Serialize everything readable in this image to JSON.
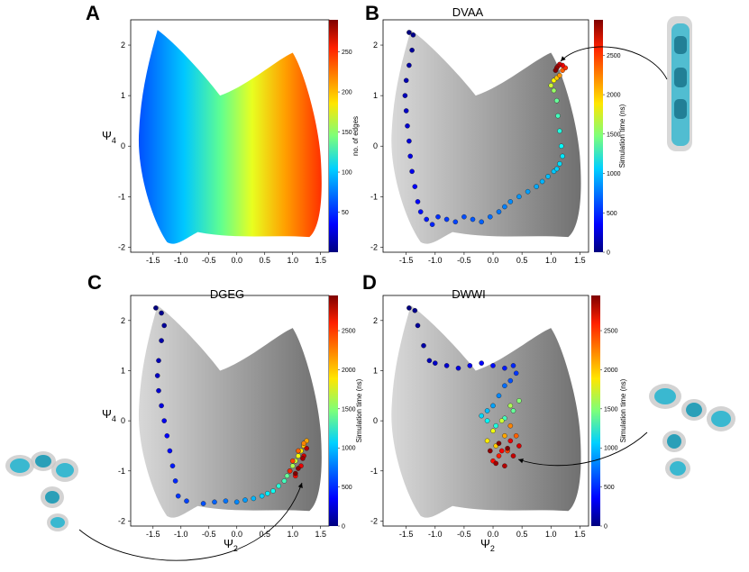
{
  "colors": {
    "jet_low": "#00007f",
    "jet_high": "#7f0000",
    "background_cloud": "#9a9a9a",
    "arrow": "#000000"
  },
  "chart_data": [
    {
      "panel": "A",
      "title": "",
      "type": "scatter",
      "xlabel": "",
      "ylabel": "Ψ",
      "ylabel_sub": "4",
      "xlim": [
        -1.9,
        1.65
      ],
      "ylim": [
        -2.1,
        2.5
      ],
      "xticks": [
        "-1.5",
        "-1.0",
        "-0.5",
        "0.0",
        "0.5",
        "1.0",
        "1.5"
      ],
      "yticks": [
        "-2",
        "-1",
        "0",
        "1",
        "2"
      ],
      "colorbar": {
        "label": "no. of edges",
        "range": [
          0,
          290
        ],
        "ticks": [
          "50",
          "100",
          "150",
          "200",
          "250"
        ],
        "colormap": "jet"
      },
      "series": [
        {
          "name": "conformational landscape colored by no. of edges",
          "color_mapping": "edges increase with Ψ2"
        }
      ]
    },
    {
      "panel": "B",
      "title": "DVAA",
      "type": "scatter",
      "xlabel": "",
      "ylabel": "",
      "xlim": [
        -1.9,
        1.65
      ],
      "ylim": [
        -2.1,
        2.5
      ],
      "xticks": [
        "-1.5",
        "-1.0",
        "-0.5",
        "0.0",
        "0.5",
        "1.0",
        "1.5"
      ],
      "yticks": [
        "-2",
        "-1",
        "0",
        "1",
        "2"
      ],
      "colorbar": {
        "label": "Simulation time (ns)",
        "range": [
          0,
          2950
        ],
        "ticks": [
          "0",
          "500",
          "1000",
          "1500",
          "2000",
          "2500"
        ],
        "colormap": "jet"
      },
      "trajectory": {
        "x": [
          -1.45,
          -1.38,
          -1.4,
          -1.45,
          -1.5,
          -1.52,
          -1.5,
          -1.48,
          -1.45,
          -1.43,
          -1.4,
          -1.35,
          -1.3,
          -1.25,
          -1.15,
          -1.05,
          -0.95,
          -0.8,
          -0.65,
          -0.5,
          -0.35,
          -0.2,
          -0.05,
          0.1,
          0.2,
          0.3,
          0.45,
          0.6,
          0.75,
          0.85,
          0.95,
          1.05,
          1.1,
          1.15,
          1.2,
          1.18,
          1.15,
          1.12,
          1.1,
          1.05,
          1.0,
          1.05,
          1.1,
          1.15,
          1.2,
          1.25,
          1.2,
          1.15,
          1.12,
          1.1,
          1.08
        ],
        "y": [
          2.25,
          2.2,
          1.9,
          1.6,
          1.3,
          1.0,
          0.7,
          0.4,
          0.1,
          -0.2,
          -0.5,
          -0.8,
          -1.1,
          -1.3,
          -1.45,
          -1.55,
          -1.4,
          -1.45,
          -1.5,
          -1.4,
          -1.45,
          -1.5,
          -1.4,
          -1.3,
          -1.2,
          -1.1,
          -1.0,
          -0.9,
          -0.8,
          -0.7,
          -0.6,
          -0.5,
          -0.45,
          -0.35,
          -0.2,
          0.0,
          0.3,
          0.6,
          0.9,
          1.1,
          1.2,
          1.3,
          1.35,
          1.4,
          1.5,
          1.55,
          1.6,
          1.62,
          1.58,
          1.55,
          1.5
        ],
        "time_ns": [
          0,
          40,
          80,
          110,
          140,
          170,
          200,
          230,
          260,
          290,
          320,
          350,
          380,
          410,
          440,
          470,
          500,
          530,
          560,
          590,
          620,
          650,
          680,
          710,
          740,
          770,
          800,
          830,
          860,
          890,
          920,
          950,
          980,
          1010,
          1040,
          1100,
          1200,
          1300,
          1400,
          1550,
          1700,
          1850,
          2000,
          2150,
          2300,
          2450,
          2600,
          2700,
          2800,
          2880,
          2950
        ]
      },
      "annotation": "structure snapshot: extended (DVAA)"
    },
    {
      "panel": "C",
      "title": "DGEG",
      "type": "scatter",
      "xlabel": "Ψ",
      "xlabel_sub": "2",
      "ylabel": "Ψ",
      "ylabel_sub": "4",
      "xlim": [
        -1.9,
        1.65
      ],
      "ylim": [
        -2.1,
        2.5
      ],
      "xticks": [
        "-1.5",
        "-1.0",
        "-0.5",
        "0.0",
        "0.5",
        "1.0",
        "1.5"
      ],
      "yticks": [
        "-2",
        "-1",
        "0",
        "1",
        "2"
      ],
      "colorbar": {
        "label": "Simulation time (ns)",
        "range": [
          0,
          2950
        ],
        "ticks": [
          "0",
          "500",
          "1000",
          "1500",
          "2000",
          "2500"
        ],
        "colormap": "jet"
      },
      "trajectory": {
        "x": [
          -1.45,
          -1.35,
          -1.3,
          -1.35,
          -1.4,
          -1.42,
          -1.4,
          -1.35,
          -1.3,
          -1.25,
          -1.2,
          -1.15,
          -1.1,
          -1.05,
          -0.9,
          -0.6,
          -0.4,
          -0.2,
          0.0,
          0.15,
          0.3,
          0.45,
          0.55,
          0.65,
          0.75,
          0.85,
          0.9,
          0.95,
          1.0,
          1.05,
          1.1,
          1.15,
          1.2,
          1.25,
          1.2,
          1.1,
          1.0,
          0.95,
          1.05,
          1.15,
          1.2,
          1.25,
          1.18,
          1.1,
          1.05
        ],
        "y": [
          2.25,
          2.15,
          1.9,
          1.6,
          1.2,
          0.9,
          0.6,
          0.3,
          0.0,
          -0.3,
          -0.6,
          -0.9,
          -1.2,
          -1.5,
          -1.6,
          -1.65,
          -1.62,
          -1.6,
          -1.62,
          -1.58,
          -1.55,
          -1.5,
          -1.45,
          -1.4,
          -1.3,
          -1.2,
          -1.1,
          -1.0,
          -0.9,
          -0.8,
          -0.7,
          -0.6,
          -0.5,
          -0.4,
          -0.45,
          -0.6,
          -0.8,
          -1.0,
          -1.1,
          -0.9,
          -0.7,
          -0.55,
          -0.75,
          -0.95,
          -1.05
        ],
        "time_ns": [
          0,
          40,
          80,
          120,
          160,
          200,
          240,
          280,
          320,
          360,
          400,
          440,
          480,
          520,
          560,
          600,
          650,
          700,
          760,
          820,
          900,
          980,
          1060,
          1140,
          1220,
          1300,
          1400,
          1500,
          1600,
          1700,
          1800,
          1900,
          2000,
          2100,
          2200,
          2300,
          2400,
          2480,
          2560,
          2640,
          2720,
          2800,
          2860,
          2910,
          2950
        ]
      },
      "annotation": "structure snapshot: compact (DGEG)"
    },
    {
      "panel": "D",
      "title": "DWWI",
      "type": "scatter",
      "xlabel": "Ψ",
      "xlabel_sub": "2",
      "ylabel": "",
      "xlim": [
        -1.9,
        1.65
      ],
      "ylim": [
        -2.1,
        2.5
      ],
      "xticks": [
        "-1.5",
        "-1.0",
        "-0.5",
        "0.0",
        "0.5",
        "1.0",
        "1.5"
      ],
      "yticks": [
        "-2",
        "-1",
        "0",
        "1",
        "2"
      ],
      "colorbar": {
        "label": "Simulation time (ns)",
        "range": [
          0,
          2950
        ],
        "ticks": [
          "0",
          "500",
          "1000",
          "1500",
          "2000",
          "2500"
        ],
        "colormap": "jet"
      },
      "trajectory": {
        "x": [
          -1.45,
          -1.35,
          -1.3,
          -1.2,
          -1.1,
          -1.0,
          -0.8,
          -0.6,
          -0.4,
          -0.2,
          0.0,
          0.2,
          0.35,
          0.4,
          0.3,
          0.2,
          0.1,
          0.0,
          -0.1,
          -0.2,
          -0.1,
          0.05,
          0.2,
          0.35,
          0.45,
          0.3,
          0.15,
          0.0,
          -0.1,
          0.05,
          0.2,
          0.3,
          0.4,
          0.25,
          0.1,
          0.0,
          0.15,
          0.3,
          0.45,
          0.35,
          0.2,
          0.05,
          -0.05,
          0.1,
          0.25
        ],
        "y": [
          2.25,
          2.2,
          1.9,
          1.5,
          1.2,
          1.15,
          1.1,
          1.05,
          1.1,
          1.15,
          1.1,
          1.05,
          1.1,
          0.95,
          0.8,
          0.7,
          0.5,
          0.3,
          0.2,
          0.1,
          0.0,
          -0.1,
          0.05,
          0.2,
          0.4,
          0.3,
          0.0,
          -0.2,
          -0.4,
          -0.5,
          -0.3,
          -0.1,
          -0.3,
          -0.6,
          -0.7,
          -0.8,
          -0.6,
          -0.4,
          -0.5,
          -0.7,
          -0.9,
          -0.85,
          -0.6,
          -0.45,
          -0.55
        ],
        "time_ns": [
          0,
          40,
          80,
          120,
          160,
          200,
          240,
          280,
          320,
          360,
          400,
          440,
          480,
          520,
          600,
          680,
          760,
          840,
          920,
          1000,
          1100,
          1200,
          1300,
          1400,
          1500,
          1600,
          1700,
          1800,
          1900,
          2000,
          2100,
          2200,
          2300,
          2400,
          2500,
          2550,
          2600,
          2650,
          2700,
          2750,
          2800,
          2850,
          2900,
          2930,
          2950
        ]
      },
      "annotation": "structure snapshot: branched (DWWI)"
    }
  ]
}
